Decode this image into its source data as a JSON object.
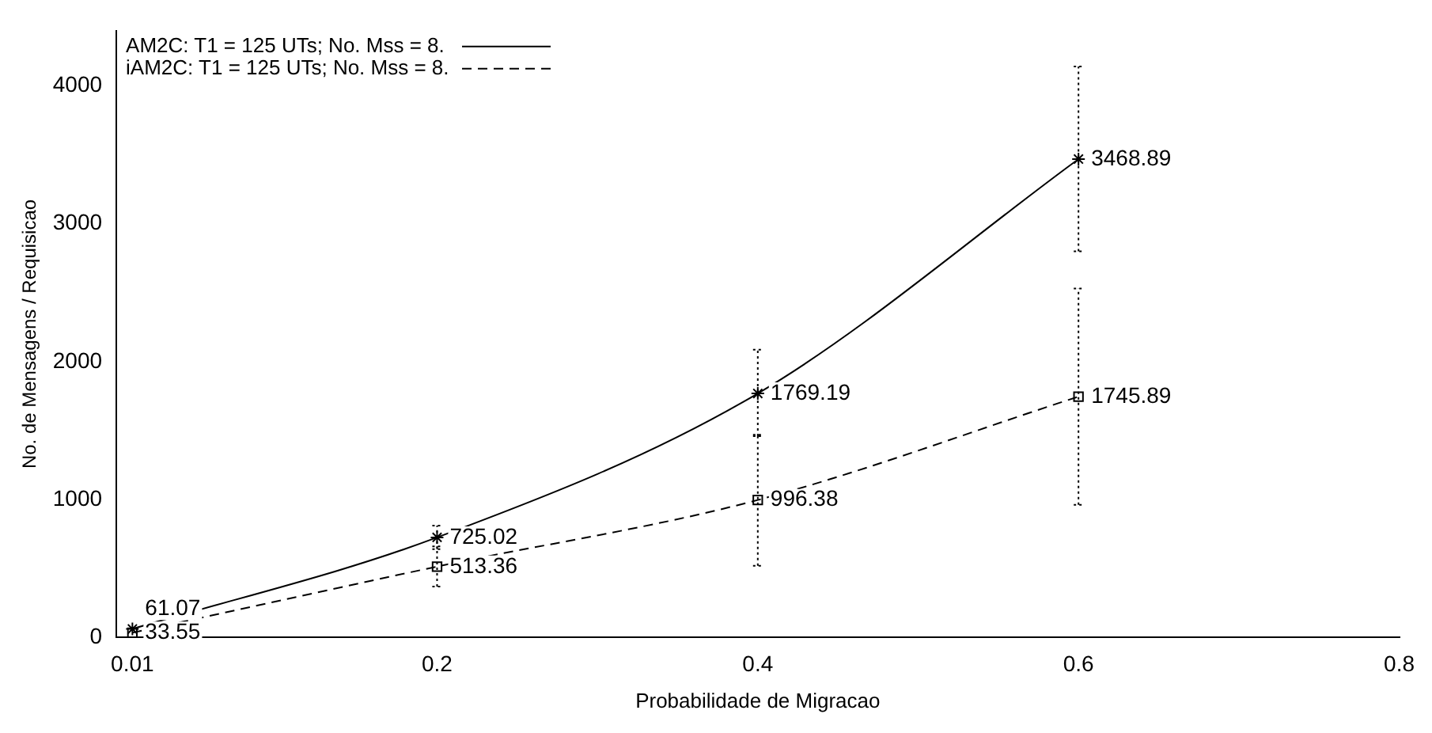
{
  "chart_data": {
    "type": "line",
    "xlabel": "Probabilidade de Migracao",
    "ylabel": "No. de Mensagens / Requisicao",
    "x": [
      0.01,
      0.2,
      0.4,
      0.6
    ],
    "series": [
      {
        "name": "AM2C: T1 = 125 UTs; No. Mss = 8.",
        "color": "#000000",
        "line_style": "solid",
        "marker": "cross",
        "values": [
          61.07,
          725.02,
          1769.19,
          3468.89
        ],
        "errors": [
          null,
          [
            640,
            811
          ],
          [
            1460,
            2086
          ],
          [
            2800,
            4140
          ]
        ]
      },
      {
        "name": "iAM2C: T1 = 125 UTs; No. Mss = 8.",
        "color": "#000000",
        "line_style": "dashed",
        "marker": "square",
        "values": [
          33.55,
          513.36,
          996.38,
          1745.89
        ],
        "errors": [
          null,
          [
            368,
            660
          ],
          [
            520,
            1470
          ],
          [
            962,
            2530
          ]
        ]
      }
    ],
    "xlim": [
      0,
      0.8
    ],
    "xticks": [
      0.01,
      0.2,
      0.4,
      0.6,
      0.8
    ],
    "ylim": [
      0,
      4400
    ],
    "yticks": [
      0,
      1000,
      2000,
      3000,
      4000
    ],
    "grid": false,
    "legend": "top left",
    "data_labels": true
  }
}
